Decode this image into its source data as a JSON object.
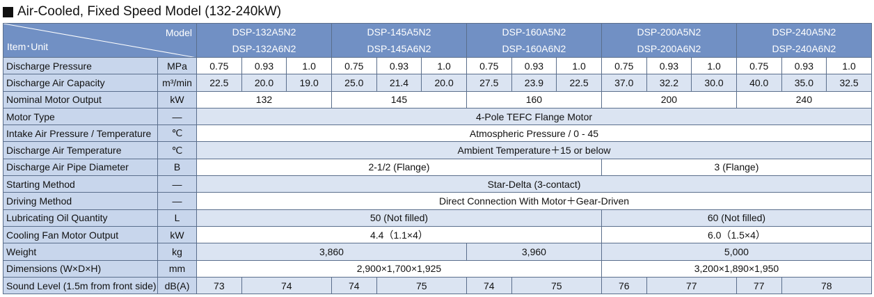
{
  "header": {
    "title": "Air-Cooled, Fixed Speed Model (132-240kW)"
  },
  "table": {
    "model_label": "Model",
    "item_unit_label": "Item･Unit",
    "models": [
      [
        "DSP-132A5N2",
        "DSP-132A6N2"
      ],
      [
        "DSP-145A5N2",
        "DSP-145A6N2"
      ],
      [
        "DSP-160A5N2",
        "DSP-160A6N2"
      ],
      [
        "DSP-200A5N2",
        "DSP-200A6N2"
      ],
      [
        "DSP-240A5N2",
        "DSP-240A6N2"
      ]
    ],
    "rows": [
      {
        "item": "Discharge Pressure",
        "unit": "MPa",
        "cells": [
          "0.75",
          "0.93",
          "1.0",
          "0.75",
          "0.93",
          "1.0",
          "0.75",
          "0.93",
          "1.0",
          "0.75",
          "0.93",
          "1.0",
          "0.75",
          "0.93",
          "1.0"
        ]
      },
      {
        "item": "Discharge Air Capacity",
        "unit": "m³/min",
        "cells": [
          "22.5",
          "20.0",
          "19.0",
          "25.0",
          "21.4",
          "20.0",
          "27.5",
          "23.9",
          "22.5",
          "37.0",
          "32.2",
          "30.0",
          "40.0",
          "35.0",
          "32.5"
        ]
      },
      {
        "item": "Nominal Motor Output",
        "unit": "kW",
        "cells": [
          "132",
          "145",
          "160",
          "200",
          "240"
        ]
      },
      {
        "item": "Motor Type",
        "unit": "—",
        "cells": [
          "4-Pole TEFC Flange Motor"
        ]
      },
      {
        "item": "Intake Air Pressure / Temperature",
        "unit": "℃",
        "cells": [
          "Atmospheric Pressure / 0 - 45"
        ]
      },
      {
        "item": "Discharge Air Temperature",
        "unit": "℃",
        "cells": [
          "Ambient Temperature＋15 or below"
        ]
      },
      {
        "item": "Discharge Air Pipe Diameter",
        "unit": "B",
        "cells": [
          "2-1/2 (Flange)",
          "3 (Flange)"
        ]
      },
      {
        "item": "Starting Method",
        "unit": "—",
        "cells": [
          "Star-Delta (3-contact)"
        ]
      },
      {
        "item": "Driving Method",
        "unit": "—",
        "cells": [
          "Direct Connection With Motor＋Gear-Driven"
        ]
      },
      {
        "item": "Lubricating Oil Quantity",
        "unit": "L",
        "cells": [
          "50 (Not filled)",
          "60 (Not filled)"
        ]
      },
      {
        "item": "Cooling Fan Motor Output",
        "unit": "kW",
        "cells": [
          "4.4（1.1×4）",
          "6.0（1.5×4）"
        ]
      },
      {
        "item": "Weight",
        "unit": "kg",
        "cells": [
          "3,860",
          "3,960",
          "5,000"
        ]
      },
      {
        "item": "Dimensions (W×D×H)",
        "unit": "mm",
        "cells": [
          "2,900×1,700×1,925",
          "3,200×1,890×1,950"
        ]
      },
      {
        "item": "Sound Level (1.5m from front side)",
        "unit": "dB(A)",
        "cells": [
          "73",
          "74",
          "74",
          "75",
          "74",
          "75",
          "76",
          "77",
          "77",
          "78"
        ]
      }
    ]
  }
}
